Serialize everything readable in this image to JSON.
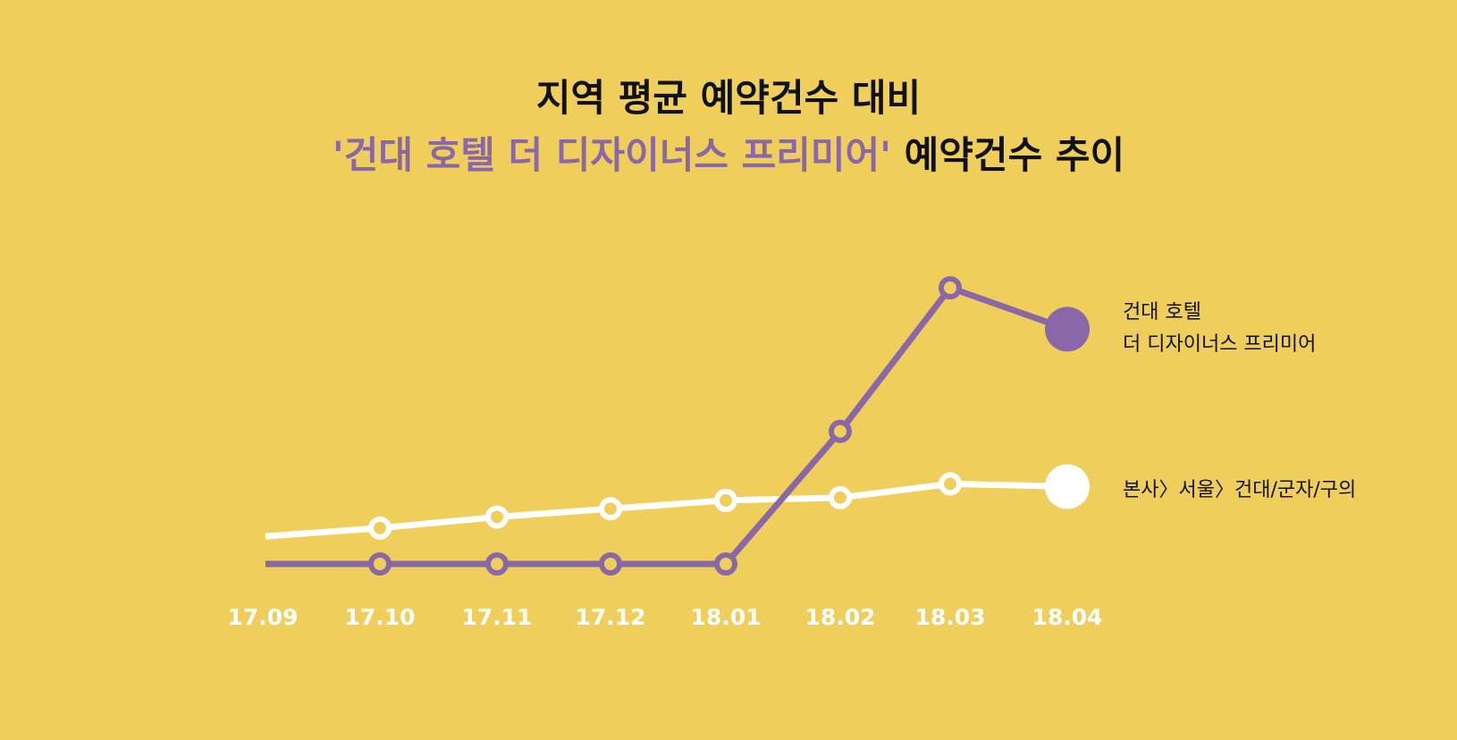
{
  "title": {
    "line1": "지역 평균 예약건수 대비",
    "line2_highlight": "'건대 호텔 더 디자이너스 프리미어'",
    "line2_rest": " 예약건수 추이"
  },
  "colors": {
    "background": "#efce5c",
    "hotel": "#8a68a8",
    "region": "#ffffff"
  },
  "chart_data": {
    "type": "line",
    "categories": [
      "17.09",
      "17.10",
      "17.11",
      "17.12",
      "18.01",
      "18.02",
      "18.03",
      "18.04"
    ],
    "ylim": [
      0,
      100
    ],
    "grid": false,
    "legend_position": "right",
    "series": [
      {
        "name": "건대 호텔 더 디자이너스 프리미어",
        "name_lines": [
          "건대 호텔",
          "더 디자이너스 프리미어"
        ],
        "color": "#8a68a8",
        "values": [
          0,
          0,
          0,
          0,
          0,
          48,
          100,
          85
        ]
      },
      {
        "name": "본사〉서울〉건대/군자/구의",
        "name_lines": [
          "본사〉서울〉건대/군자/구의"
        ],
        "color": "#ffffff",
        "values": [
          10,
          13,
          17,
          20,
          23,
          24,
          29,
          28
        ]
      }
    ]
  }
}
